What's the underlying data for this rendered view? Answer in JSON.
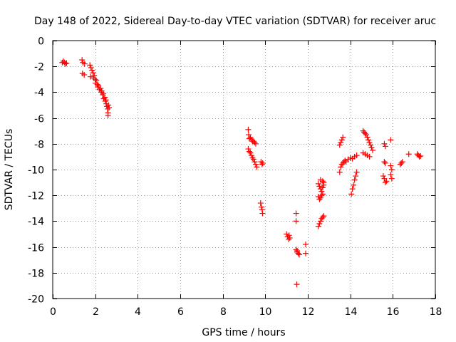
{
  "chart_data": {
    "type": "scatter",
    "title": "Day 148 of 2022, Sidereal Day-to-day VTEC variation (SDTVAR) for receiver aruc",
    "xlabel": "GPS time / hours",
    "ylabel": "SDTVAR / TECUs",
    "xlim": [
      0,
      18
    ],
    "ylim": [
      -20,
      0
    ],
    "xticks": [
      0,
      2,
      4,
      6,
      8,
      10,
      12,
      14,
      16,
      18
    ],
    "yticks": [
      0,
      -2,
      -4,
      -6,
      -8,
      -10,
      -12,
      -14,
      -16,
      -18,
      -20
    ],
    "xtick_labels": [
      "0",
      "2",
      "4",
      "6",
      "8",
      "10",
      "12",
      "14",
      "16",
      "18"
    ],
    "ytick_labels": [
      "0",
      "-2",
      "-4",
      "-6",
      "-8",
      "-10",
      "-12",
      "-14",
      "-16",
      "-18",
      "-20"
    ],
    "grid": true,
    "marker": "+",
    "color": "#ff0000",
    "series": [
      {
        "name": "SDTVAR",
        "points": [
          [
            0.45,
            -1.7
          ],
          [
            0.5,
            -1.6
          ],
          [
            0.55,
            -1.7
          ],
          [
            0.6,
            -1.8
          ],
          [
            0.65,
            -1.75
          ],
          [
            1.38,
            -1.5
          ],
          [
            1.42,
            -1.7
          ],
          [
            1.5,
            -1.8
          ],
          [
            1.4,
            -2.55
          ],
          [
            1.48,
            -2.65
          ],
          [
            1.75,
            -1.9
          ],
          [
            1.8,
            -2.1
          ],
          [
            1.78,
            -2.8
          ],
          [
            1.85,
            -2.3
          ],
          [
            1.9,
            -2.5
          ],
          [
            1.92,
            -2.9
          ],
          [
            1.95,
            -2.7
          ],
          [
            2.0,
            -3.0
          ],
          [
            2.02,
            -3.3
          ],
          [
            2.05,
            -3.1
          ],
          [
            2.1,
            -3.4
          ],
          [
            2.12,
            -3.6
          ],
          [
            2.15,
            -3.5
          ],
          [
            2.2,
            -3.8
          ],
          [
            2.25,
            -3.7
          ],
          [
            2.28,
            -4.0
          ],
          [
            2.3,
            -3.9
          ],
          [
            2.35,
            -4.2
          ],
          [
            2.38,
            -4.1
          ],
          [
            2.4,
            -4.5
          ],
          [
            2.45,
            -4.4
          ],
          [
            2.48,
            -4.7
          ],
          [
            2.5,
            -4.6
          ],
          [
            2.52,
            -4.9
          ],
          [
            2.55,
            -5.1
          ],
          [
            2.58,
            -5.3
          ],
          [
            2.6,
            -5.6
          ],
          [
            2.62,
            -5.0
          ],
          [
            2.65,
            -5.2
          ],
          [
            2.6,
            -5.8
          ],
          [
            9.2,
            -6.9
          ],
          [
            9.22,
            -7.3
          ],
          [
            9.25,
            -7.6
          ],
          [
            9.3,
            -7.5
          ],
          [
            9.35,
            -7.7
          ],
          [
            9.4,
            -7.8
          ],
          [
            9.45,
            -7.8
          ],
          [
            9.5,
            -7.9
          ],
          [
            9.55,
            -8.0
          ],
          [
            9.2,
            -8.4
          ],
          [
            9.25,
            -8.6
          ],
          [
            9.3,
            -8.7
          ],
          [
            9.35,
            -8.9
          ],
          [
            9.4,
            -9.1
          ],
          [
            9.45,
            -9.2
          ],
          [
            9.5,
            -9.4
          ],
          [
            9.55,
            -9.6
          ],
          [
            9.6,
            -9.8
          ],
          [
            9.8,
            -9.4
          ],
          [
            9.85,
            -9.6
          ],
          [
            9.88,
            -9.5
          ],
          [
            9.78,
            -12.6
          ],
          [
            9.82,
            -12.9
          ],
          [
            9.85,
            -13.1
          ],
          [
            9.87,
            -13.4
          ],
          [
            11.0,
            -15.0
          ],
          [
            11.05,
            -15.2
          ],
          [
            11.1,
            -15.4
          ],
          [
            11.12,
            -15.1
          ],
          [
            11.15,
            -15.3
          ],
          [
            11.45,
            -13.4
          ],
          [
            11.45,
            -14.0
          ],
          [
            11.45,
            -16.2
          ],
          [
            11.5,
            -16.4
          ],
          [
            11.55,
            -16.5
          ],
          [
            11.6,
            -16.6
          ],
          [
            11.5,
            -16.3
          ],
          [
            11.9,
            -15.8
          ],
          [
            11.9,
            -16.5
          ],
          [
            11.48,
            -18.9
          ],
          [
            12.5,
            -14.4
          ],
          [
            12.55,
            -14.2
          ],
          [
            12.6,
            -14.0
          ],
          [
            12.65,
            -13.8
          ],
          [
            12.7,
            -13.7
          ],
          [
            12.75,
            -13.6
          ],
          [
            12.5,
            -11.1
          ],
          [
            12.55,
            -11.3
          ],
          [
            12.6,
            -11.5
          ],
          [
            12.65,
            -11.7
          ],
          [
            12.7,
            -11.4
          ],
          [
            12.75,
            -11.2
          ],
          [
            12.5,
            -12.1
          ],
          [
            12.55,
            -12.3
          ],
          [
            12.6,
            -12.2
          ],
          [
            12.65,
            -12.0
          ],
          [
            12.7,
            -11.9
          ],
          [
            12.6,
            -10.8
          ],
          [
            12.7,
            -10.9
          ],
          [
            12.75,
            -11.0
          ],
          [
            13.5,
            -8.1
          ],
          [
            13.55,
            -7.9
          ],
          [
            13.6,
            -7.7
          ],
          [
            13.65,
            -7.5
          ],
          [
            13.5,
            -10.2
          ],
          [
            13.55,
            -9.8
          ],
          [
            13.6,
            -9.6
          ],
          [
            13.65,
            -9.5
          ],
          [
            13.7,
            -9.4
          ],
          [
            13.75,
            -9.3
          ],
          [
            13.8,
            -9.4
          ],
          [
            13.9,
            -9.2
          ],
          [
            14.0,
            -9.1
          ],
          [
            14.1,
            -9.15
          ],
          [
            14.2,
            -9.0
          ],
          [
            14.3,
            -8.9
          ],
          [
            14.05,
            -11.9
          ],
          [
            14.1,
            -11.5
          ],
          [
            14.15,
            -11.2
          ],
          [
            14.2,
            -10.8
          ],
          [
            14.25,
            -10.5
          ],
          [
            14.3,
            -10.2
          ],
          [
            14.6,
            -7.0
          ],
          [
            14.65,
            -7.1
          ],
          [
            14.7,
            -7.2
          ],
          [
            14.75,
            -7.3
          ],
          [
            14.8,
            -7.5
          ],
          [
            14.85,
            -7.7
          ],
          [
            14.9,
            -7.9
          ],
          [
            14.95,
            -8.1
          ],
          [
            15.0,
            -8.3
          ],
          [
            15.05,
            -8.5
          ],
          [
            14.6,
            -8.7
          ],
          [
            14.7,
            -8.8
          ],
          [
            14.8,
            -8.9
          ],
          [
            14.9,
            -9.0
          ],
          [
            15.6,
            -8.0
          ],
          [
            15.65,
            -8.2
          ],
          [
            15.6,
            -9.4
          ],
          [
            15.65,
            -9.5
          ],
          [
            15.55,
            -10.5
          ],
          [
            15.6,
            -10.7
          ],
          [
            15.65,
            -11.0
          ],
          [
            15.7,
            -10.9
          ],
          [
            15.9,
            -7.7
          ],
          [
            15.9,
            -9.7
          ],
          [
            15.95,
            -10.0
          ],
          [
            15.9,
            -10.4
          ],
          [
            15.95,
            -10.7
          ],
          [
            16.35,
            -9.6
          ],
          [
            16.4,
            -9.5
          ],
          [
            16.45,
            -9.4
          ],
          [
            16.75,
            -8.8
          ],
          [
            17.15,
            -8.8
          ],
          [
            17.2,
            -8.9
          ],
          [
            17.25,
            -9.0
          ],
          [
            17.3,
            -8.95
          ]
        ]
      }
    ]
  }
}
